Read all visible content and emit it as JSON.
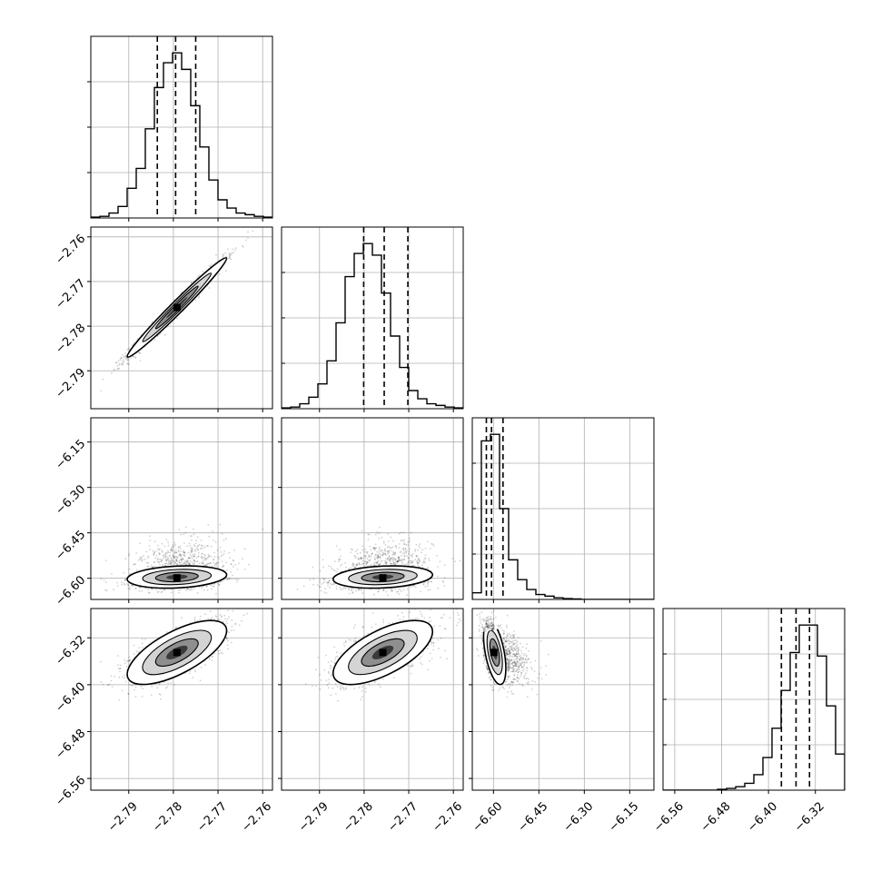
{
  "chart_data": {
    "type": "corner",
    "ndim": 4,
    "parameters": [
      {
        "ticks": [
          -2.79,
          -2.78,
          -2.77,
          -2.76
        ],
        "tick_labels": [
          "−2.79",
          "−2.78",
          "−2.77",
          "−2.76"
        ],
        "range": [
          -2.7985,
          -2.7578
        ]
      },
      {
        "ticks": [
          -2.79,
          -2.78,
          -2.77,
          -2.76
        ],
        "tick_labels": [
          "−2.79",
          "−2.78",
          "−2.77",
          "−2.76"
        ],
        "range": [
          -2.7985,
          -2.7578
        ]
      },
      {
        "ticks": [
          -6.6,
          -6.45,
          -6.3,
          -6.15
        ],
        "tick_labels": [
          "−6.60",
          "−6.45",
          "−6.30",
          "−6.15"
        ],
        "range": [
          -6.67,
          -6.07
        ]
      },
      {
        "ticks": [
          -6.56,
          -6.48,
          -6.4,
          -6.32
        ],
        "tick_labels": [
          "−6.56",
          "−6.48",
          "−6.40",
          "−6.32"
        ],
        "range": [
          -6.58,
          -6.27
        ]
      }
    ],
    "quantiles": [
      [
        -2.7836,
        -2.7795,
        -2.775
      ],
      [
        -2.7801,
        -2.7755,
        -2.7702
      ],
      [
        -6.6235,
        -6.6065,
        -6.5685
      ],
      [
        -6.378,
        -6.353,
        -6.33
      ]
    ],
    "histograms": [
      [
        0.005,
        0.01,
        0.03,
        0.07,
        0.18,
        0.3,
        0.54,
        0.79,
        0.94,
        1.0,
        0.9,
        0.68,
        0.43,
        0.23,
        0.11,
        0.06,
        0.03,
        0.02,
        0.01,
        0.005
      ],
      [
        0.005,
        0.01,
        0.03,
        0.07,
        0.15,
        0.29,
        0.52,
        0.8,
        0.94,
        1.0,
        0.93,
        0.7,
        0.44,
        0.25,
        0.11,
        0.06,
        0.03,
        0.02,
        0.01,
        0.005
      ],
      [
        0.04,
        0.96,
        1.0,
        0.55,
        0.24,
        0.12,
        0.06,
        0.03,
        0.02,
        0.01,
        0.005,
        0.003,
        0.0,
        0.0,
        0.0,
        0.0,
        0.0,
        0.0,
        0.0,
        0.0
      ],
      [
        0.0,
        0.0,
        0.0,
        0.0,
        0.0,
        0.0,
        0.005,
        0.01,
        0.02,
        0.04,
        0.09,
        0.19,
        0.36,
        0.58,
        0.8,
        0.96,
        0.96,
        0.78,
        0.49,
        0.21
      ]
    ],
    "correlations": [
      [
        1.0,
        0.985,
        0.2,
        0.68
      ],
      [
        0.985,
        1.0,
        0.2,
        0.65
      ],
      [
        0.2,
        0.2,
        1.0,
        -0.5
      ],
      [
        0.68,
        0.65,
        -0.5,
        1.0
      ]
    ],
    "peaks": [
      -2.7792,
      -2.7758,
      -6.5985,
      -6.345
    ],
    "grid": true,
    "colors": {
      "axes": "#000000",
      "grid": "#b0b0b0",
      "points": "#000000",
      "contour": "#000000"
    }
  }
}
